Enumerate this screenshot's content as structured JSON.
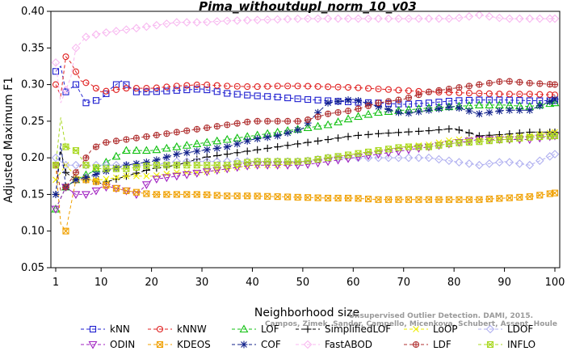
{
  "chart_data": {
    "type": "line",
    "title": "Pima_withoutdupl_norm_10_v03",
    "xlabel": "Neighborhood size",
    "ylabel": "Adjusted Maximum F1",
    "xlim": [
      0,
      100
    ],
    "ylim": [
      0.05,
      0.4
    ],
    "xticks": [
      1,
      10,
      20,
      30,
      40,
      50,
      60,
      70,
      80,
      90,
      100
    ],
    "yticks": [
      0.05,
      0.1,
      0.15,
      0.2,
      0.25,
      0.3,
      0.35,
      0.4
    ],
    "ytick_labels": [
      "0.05",
      "0.10",
      "0.15",
      "0.20",
      "0.25",
      "0.30",
      "0.35",
      "0.40"
    ],
    "grid": false,
    "legend_position": "bottom",
    "watermark": [
      "Unsupervised Outlier Detection. DAMI, 2015.",
      "Campos, Zimek, Sander, Campello, Micenkova, Schubert, Assent, Houle"
    ],
    "series": [
      {
        "name": "kNN",
        "color": "#1f1fd0",
        "marker": "square",
        "points": [
          [
            1,
            0.318
          ],
          [
            2,
            0.325
          ],
          [
            3,
            0.29
          ],
          [
            5,
            0.3
          ],
          [
            7,
            0.275
          ],
          [
            10,
            0.28
          ],
          [
            12,
            0.295
          ],
          [
            14,
            0.305
          ],
          [
            17,
            0.29
          ],
          [
            20,
            0.29
          ],
          [
            25,
            0.292
          ],
          [
            30,
            0.294
          ],
          [
            35,
            0.288
          ],
          [
            40,
            0.285
          ],
          [
            45,
            0.283
          ],
          [
            50,
            0.28
          ],
          [
            55,
            0.278
          ],
          [
            60,
            0.276
          ],
          [
            65,
            0.275
          ],
          [
            70,
            0.273
          ],
          [
            75,
            0.275
          ],
          [
            80,
            0.278
          ],
          [
            85,
            0.279
          ],
          [
            90,
            0.279
          ],
          [
            95,
            0.278
          ],
          [
            100,
            0.278
          ]
        ]
      },
      {
        "name": "kNNW",
        "color": "#e02020",
        "marker": "circle",
        "points": [
          [
            1,
            0.3
          ],
          [
            2,
            0.285
          ],
          [
            3,
            0.338
          ],
          [
            4,
            0.33
          ],
          [
            6,
            0.305
          ],
          [
            8,
            0.3
          ],
          [
            10,
            0.29
          ],
          [
            15,
            0.295
          ],
          [
            20,
            0.295
          ],
          [
            25,
            0.298
          ],
          [
            30,
            0.3
          ],
          [
            35,
            0.298
          ],
          [
            40,
            0.297
          ],
          [
            45,
            0.298
          ],
          [
            50,
            0.298
          ],
          [
            55,
            0.297
          ],
          [
            60,
            0.296
          ],
          [
            65,
            0.294
          ],
          [
            70,
            0.292
          ],
          [
            75,
            0.29
          ],
          [
            80,
            0.289
          ],
          [
            85,
            0.288
          ],
          [
            90,
            0.287
          ],
          [
            95,
            0.287
          ],
          [
            100,
            0.286
          ]
        ]
      },
      {
        "name": "LOF",
        "color": "#10c010",
        "marker": "triangle",
        "points": [
          [
            1,
            0.13
          ],
          [
            3,
            0.16
          ],
          [
            5,
            0.17
          ],
          [
            8,
            0.18
          ],
          [
            10,
            0.19
          ],
          [
            15,
            0.21
          ],
          [
            20,
            0.21
          ],
          [
            25,
            0.215
          ],
          [
            30,
            0.22
          ],
          [
            35,
            0.225
          ],
          [
            40,
            0.23
          ],
          [
            45,
            0.235
          ],
          [
            50,
            0.24
          ],
          [
            55,
            0.245
          ],
          [
            60,
            0.255
          ],
          [
            65,
            0.262
          ],
          [
            70,
            0.265
          ],
          [
            75,
            0.268
          ],
          [
            80,
            0.27
          ],
          [
            85,
            0.272
          ],
          [
            90,
            0.272
          ],
          [
            95,
            0.27
          ],
          [
            100,
            0.275
          ]
        ]
      },
      {
        "name": "SimplifiedLOF",
        "color": "#000000",
        "marker": "plus",
        "points": [
          [
            1,
            0.15
          ],
          [
            2,
            0.21
          ],
          [
            3,
            0.18
          ],
          [
            5,
            0.17
          ],
          [
            8,
            0.17
          ],
          [
            10,
            0.165
          ],
          [
            15,
            0.175
          ],
          [
            20,
            0.185
          ],
          [
            25,
            0.19
          ],
          [
            30,
            0.2
          ],
          [
            35,
            0.205
          ],
          [
            40,
            0.21
          ],
          [
            45,
            0.215
          ],
          [
            50,
            0.22
          ],
          [
            55,
            0.225
          ],
          [
            60,
            0.23
          ],
          [
            65,
            0.233
          ],
          [
            70,
            0.235
          ],
          [
            75,
            0.237
          ],
          [
            80,
            0.24
          ],
          [
            85,
            0.23
          ],
          [
            90,
            0.232
          ],
          [
            95,
            0.235
          ],
          [
            100,
            0.235
          ]
        ]
      },
      {
        "name": "LoOP",
        "color": "#eeee00",
        "marker": "x",
        "points": [
          [
            1,
            0.17
          ],
          [
            3,
            0.19
          ],
          [
            5,
            0.175
          ],
          [
            8,
            0.17
          ],
          [
            10,
            0.17
          ],
          [
            15,
            0.175
          ],
          [
            20,
            0.175
          ],
          [
            25,
            0.18
          ],
          [
            30,
            0.18
          ],
          [
            35,
            0.185
          ],
          [
            40,
            0.19
          ],
          [
            45,
            0.19
          ],
          [
            50,
            0.195
          ],
          [
            55,
            0.2
          ],
          [
            60,
            0.205
          ],
          [
            65,
            0.21
          ],
          [
            70,
            0.215
          ],
          [
            75,
            0.218
          ],
          [
            80,
            0.225
          ],
          [
            85,
            0.225
          ],
          [
            90,
            0.228
          ],
          [
            95,
            0.23
          ],
          [
            100,
            0.235
          ]
        ]
      },
      {
        "name": "LDOF",
        "color": "#b0b0f0",
        "marker": "diamond",
        "points": [
          [
            1,
            0.2
          ],
          [
            3,
            0.19
          ],
          [
            5,
            0.19
          ],
          [
            10,
            0.19
          ],
          [
            15,
            0.19
          ],
          [
            20,
            0.19
          ],
          [
            25,
            0.195
          ],
          [
            30,
            0.195
          ],
          [
            35,
            0.195
          ],
          [
            40,
            0.195
          ],
          [
            45,
            0.195
          ],
          [
            50,
            0.195
          ],
          [
            55,
            0.2
          ],
          [
            60,
            0.2
          ],
          [
            65,
            0.2
          ],
          [
            70,
            0.2
          ],
          [
            75,
            0.2
          ],
          [
            80,
            0.195
          ],
          [
            85,
            0.19
          ],
          [
            90,
            0.195
          ],
          [
            95,
            0.19
          ],
          [
            100,
            0.205
          ]
        ]
      },
      {
        "name": "ODIN",
        "color": "#a020c0",
        "marker": "triangle-down",
        "points": [
          [
            1,
            0.13
          ],
          [
            3,
            0.16
          ],
          [
            5,
            0.15
          ],
          [
            8,
            0.15
          ],
          [
            10,
            0.16
          ],
          [
            12,
            0.16
          ],
          [
            15,
            0.155
          ],
          [
            17,
            0.15
          ],
          [
            20,
            0.17
          ],
          [
            25,
            0.175
          ],
          [
            30,
            0.18
          ],
          [
            35,
            0.185
          ],
          [
            40,
            0.19
          ],
          [
            45,
            0.19
          ],
          [
            50,
            0.19
          ],
          [
            55,
            0.195
          ],
          [
            60,
            0.2
          ],
          [
            65,
            0.205
          ],
          [
            70,
            0.21
          ],
          [
            75,
            0.215
          ],
          [
            80,
            0.22
          ],
          [
            85,
            0.225
          ],
          [
            90,
            0.225
          ],
          [
            95,
            0.225
          ],
          [
            100,
            0.23
          ]
        ]
      },
      {
        "name": "KDEOS",
        "color": "#f0a000",
        "marker": "square-x",
        "points": [
          [
            1,
            0.19
          ],
          [
            2,
            0.11
          ],
          [
            3,
            0.1
          ],
          [
            5,
            0.17
          ],
          [
            8,
            0.17
          ],
          [
            10,
            0.165
          ],
          [
            12,
            0.16
          ],
          [
            15,
            0.155
          ],
          [
            20,
            0.15
          ],
          [
            25,
            0.15
          ],
          [
            30,
            0.15
          ],
          [
            35,
            0.148
          ],
          [
            40,
            0.148
          ],
          [
            45,
            0.147
          ],
          [
            50,
            0.146
          ],
          [
            55,
            0.145
          ],
          [
            60,
            0.145
          ],
          [
            65,
            0.143
          ],
          [
            70,
            0.143
          ],
          [
            75,
            0.143
          ],
          [
            80,
            0.143
          ],
          [
            85,
            0.143
          ],
          [
            90,
            0.145
          ],
          [
            95,
            0.147
          ],
          [
            100,
            0.152
          ]
        ]
      },
      {
        "name": "COF",
        "color": "#10208a",
        "marker": "star",
        "points": [
          [
            1,
            0.15
          ],
          [
            2,
            0.22
          ],
          [
            3,
            0.16
          ],
          [
            5,
            0.17
          ],
          [
            8,
            0.175
          ],
          [
            10,
            0.18
          ],
          [
            15,
            0.19
          ],
          [
            20,
            0.195
          ],
          [
            25,
            0.205
          ],
          [
            30,
            0.21
          ],
          [
            35,
            0.215
          ],
          [
            40,
            0.225
          ],
          [
            45,
            0.23
          ],
          [
            50,
            0.24
          ],
          [
            52,
            0.255
          ],
          [
            55,
            0.275
          ],
          [
            60,
            0.28
          ],
          [
            65,
            0.27
          ],
          [
            70,
            0.26
          ],
          [
            75,
            0.265
          ],
          [
            80,
            0.27
          ],
          [
            85,
            0.26
          ],
          [
            90,
            0.265
          ],
          [
            95,
            0.265
          ],
          [
            100,
            0.28
          ]
        ]
      },
      {
        "name": "FastABOD",
        "color": "#f8b8f0",
        "marker": "diamond",
        "points": [
          [
            1,
            0.33
          ],
          [
            2,
            0.275
          ],
          [
            4,
            0.31
          ],
          [
            5,
            0.35
          ],
          [
            7,
            0.365
          ],
          [
            10,
            0.37
          ],
          [
            15,
            0.375
          ],
          [
            20,
            0.38
          ],
          [
            25,
            0.385
          ],
          [
            30,
            0.385
          ],
          [
            35,
            0.387
          ],
          [
            40,
            0.388
          ],
          [
            45,
            0.389
          ],
          [
            50,
            0.39
          ],
          [
            55,
            0.39
          ],
          [
            60,
            0.39
          ],
          [
            65,
            0.39
          ],
          [
            70,
            0.39
          ],
          [
            75,
            0.39
          ],
          [
            80,
            0.39
          ],
          [
            85,
            0.395
          ],
          [
            90,
            0.39
          ],
          [
            95,
            0.39
          ],
          [
            100,
            0.39
          ]
        ]
      },
      {
        "name": "LDF",
        "color": "#b03030",
        "marker": "circle-plus",
        "points": [
          [
            1,
            0.19
          ],
          [
            2,
            0.155
          ],
          [
            3,
            0.16
          ],
          [
            5,
            0.18
          ],
          [
            8,
            0.21
          ],
          [
            10,
            0.22
          ],
          [
            15,
            0.225
          ],
          [
            20,
            0.23
          ],
          [
            25,
            0.235
          ],
          [
            30,
            0.24
          ],
          [
            35,
            0.245
          ],
          [
            40,
            0.25
          ],
          [
            45,
            0.25
          ],
          [
            50,
            0.25
          ],
          [
            55,
            0.26
          ],
          [
            60,
            0.265
          ],
          [
            65,
            0.275
          ],
          [
            70,
            0.28
          ],
          [
            75,
            0.29
          ],
          [
            80,
            0.295
          ],
          [
            85,
            0.3
          ],
          [
            90,
            0.305
          ],
          [
            95,
            0.302
          ],
          [
            100,
            0.3
          ]
        ]
      },
      {
        "name": "INFLO",
        "color": "#a8d820",
        "marker": "square-star",
        "points": [
          [
            1,
            0.19
          ],
          [
            2,
            0.255
          ],
          [
            3,
            0.215
          ],
          [
            5,
            0.21
          ],
          [
            7,
            0.19
          ],
          [
            10,
            0.185
          ],
          [
            15,
            0.185
          ],
          [
            20,
            0.19
          ],
          [
            25,
            0.19
          ],
          [
            30,
            0.19
          ],
          [
            35,
            0.19
          ],
          [
            40,
            0.195
          ],
          [
            45,
            0.195
          ],
          [
            50,
            0.195
          ],
          [
            55,
            0.2
          ],
          [
            60,
            0.205
          ],
          [
            65,
            0.21
          ],
          [
            70,
            0.215
          ],
          [
            75,
            0.215
          ],
          [
            80,
            0.22
          ],
          [
            85,
            0.222
          ],
          [
            90,
            0.225
          ],
          [
            95,
            0.228
          ],
          [
            100,
            0.23
          ]
        ]
      }
    ]
  }
}
